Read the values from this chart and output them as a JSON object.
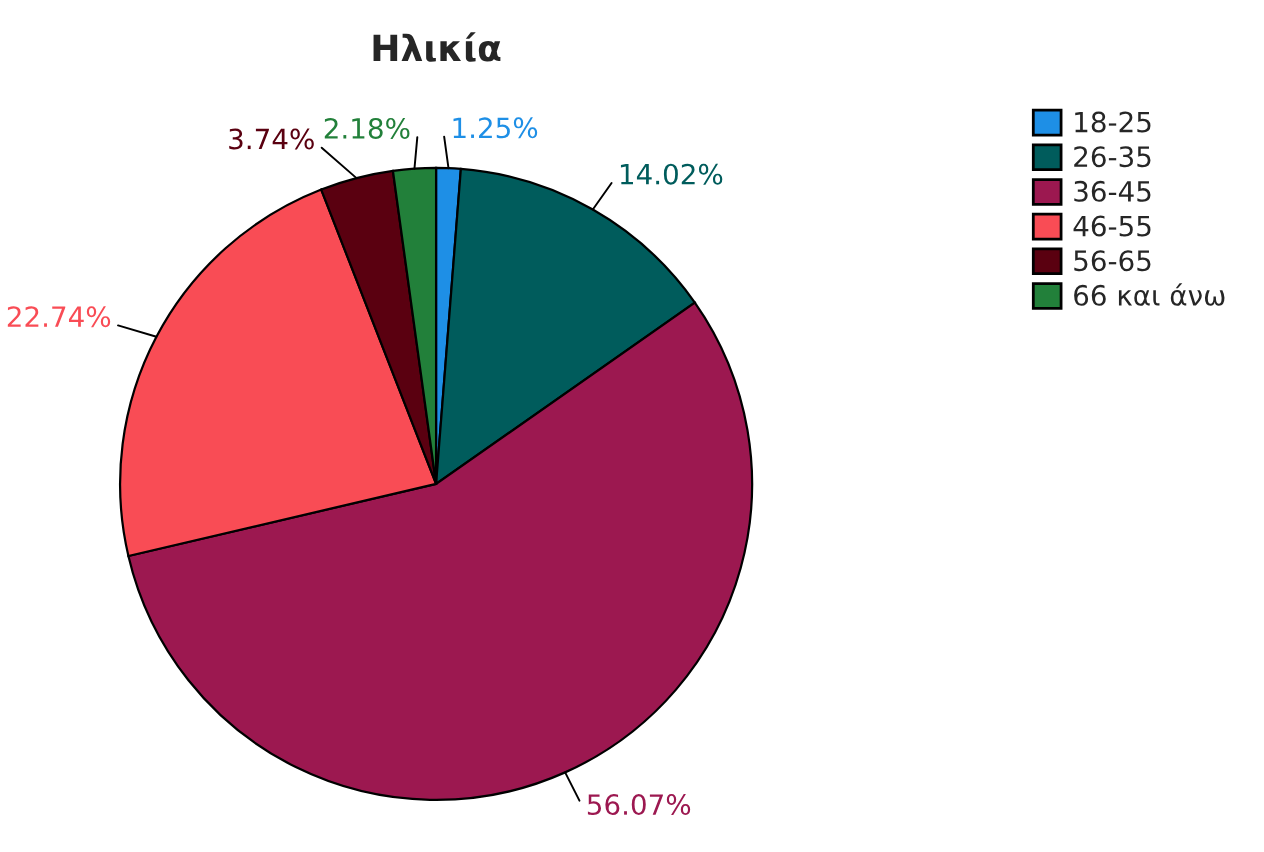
{
  "chart_data": {
    "type": "pie",
    "title": "Ηλικία",
    "categories": [
      "18-25",
      "26-35",
      "36-45",
      "46-55",
      "56-65",
      "66 και άνω"
    ],
    "values": [
      1.25,
      14.02,
      56.07,
      22.74,
      3.74,
      2.18
    ],
    "value_labels": [
      "1.25%",
      "14.02%",
      "56.07%",
      "22.74%",
      "3.74%",
      "2.18%"
    ],
    "colors": [
      "#1e8fe6",
      "#005c5c",
      "#9c1850",
      "#f94c55",
      "#5a0010",
      "#22803a"
    ],
    "legend": "top right"
  }
}
